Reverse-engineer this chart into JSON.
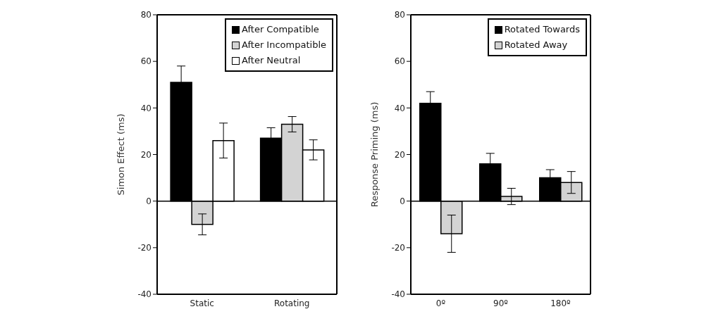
{
  "chart_data": [
    {
      "type": "bar",
      "categories": [
        "Static",
        "Rotating"
      ],
      "ylabel": "Simon Effect (ms)",
      "ylim": [
        -40,
        80
      ],
      "yticks": [
        -40,
        -20,
        0,
        20,
        40,
        60,
        80
      ],
      "legend": "top right",
      "series": [
        {
          "name": "After Compatible",
          "color": "#000000",
          "values": [
            51,
            27
          ],
          "errors": [
            7,
            4.5
          ]
        },
        {
          "name": "After Incompatible",
          "color": "#d3d3d3",
          "values": [
            -10,
            33
          ],
          "errors": [
            4.5,
            3.3
          ]
        },
        {
          "name": "After Neutral",
          "color": "#ffffff",
          "values": [
            26,
            22
          ],
          "errors": [
            7.5,
            4.3
          ]
        }
      ]
    },
    {
      "type": "bar",
      "categories": [
        "0º",
        "90º",
        "180º"
      ],
      "ylabel": "Response Priming (ms)",
      "ylim": [
        -40,
        80
      ],
      "yticks": [
        -40,
        -20,
        0,
        20,
        40,
        60,
        80
      ],
      "legend": "top right",
      "series": [
        {
          "name": "Rotated Towards",
          "color": "#000000",
          "values": [
            42,
            16,
            10
          ],
          "errors": [
            5,
            4.5,
            3.5
          ]
        },
        {
          "name": "Rotated Away",
          "color": "#d3d3d3",
          "values": [
            -14,
            2,
            8
          ],
          "errors": [
            8,
            3.5,
            4.7
          ]
        }
      ]
    }
  ]
}
